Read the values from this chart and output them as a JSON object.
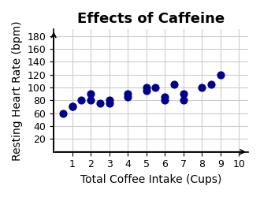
{
  "title": "Effects of Caffeine",
  "xlabel": "Total Coffee Intake (Cups)",
  "ylabel": "Resting Heart Rate (bpm)",
  "scatter_x": [
    0.5,
    1.0,
    1.0,
    1.5,
    2.0,
    2.0,
    2.5,
    3.0,
    3.0,
    4.0,
    4.0,
    5.0,
    5.0,
    5.5,
    6.0,
    6.0,
    6.5,
    7.0,
    7.0,
    8.0,
    8.5,
    9.0
  ],
  "scatter_y": [
    60,
    70,
    70,
    80,
    80,
    90,
    75,
    75,
    80,
    90,
    85,
    95,
    100,
    100,
    80,
    85,
    105,
    90,
    80,
    100,
    105,
    120
  ],
  "dot_color": "#00008B",
  "xlim": [
    0,
    10.5
  ],
  "ylim": [
    0,
    190
  ],
  "xticks": [
    1,
    2,
    3,
    4,
    5,
    6,
    7,
    8,
    9,
    10
  ],
  "yticks": [
    20,
    40,
    60,
    80,
    100,
    120,
    140,
    160,
    180
  ],
  "grid_color": "#cccccc",
  "bg_color": "#ffffff",
  "title_fontsize": 13,
  "label_fontsize": 10,
  "tick_fontsize": 9,
  "dot_size": 40
}
